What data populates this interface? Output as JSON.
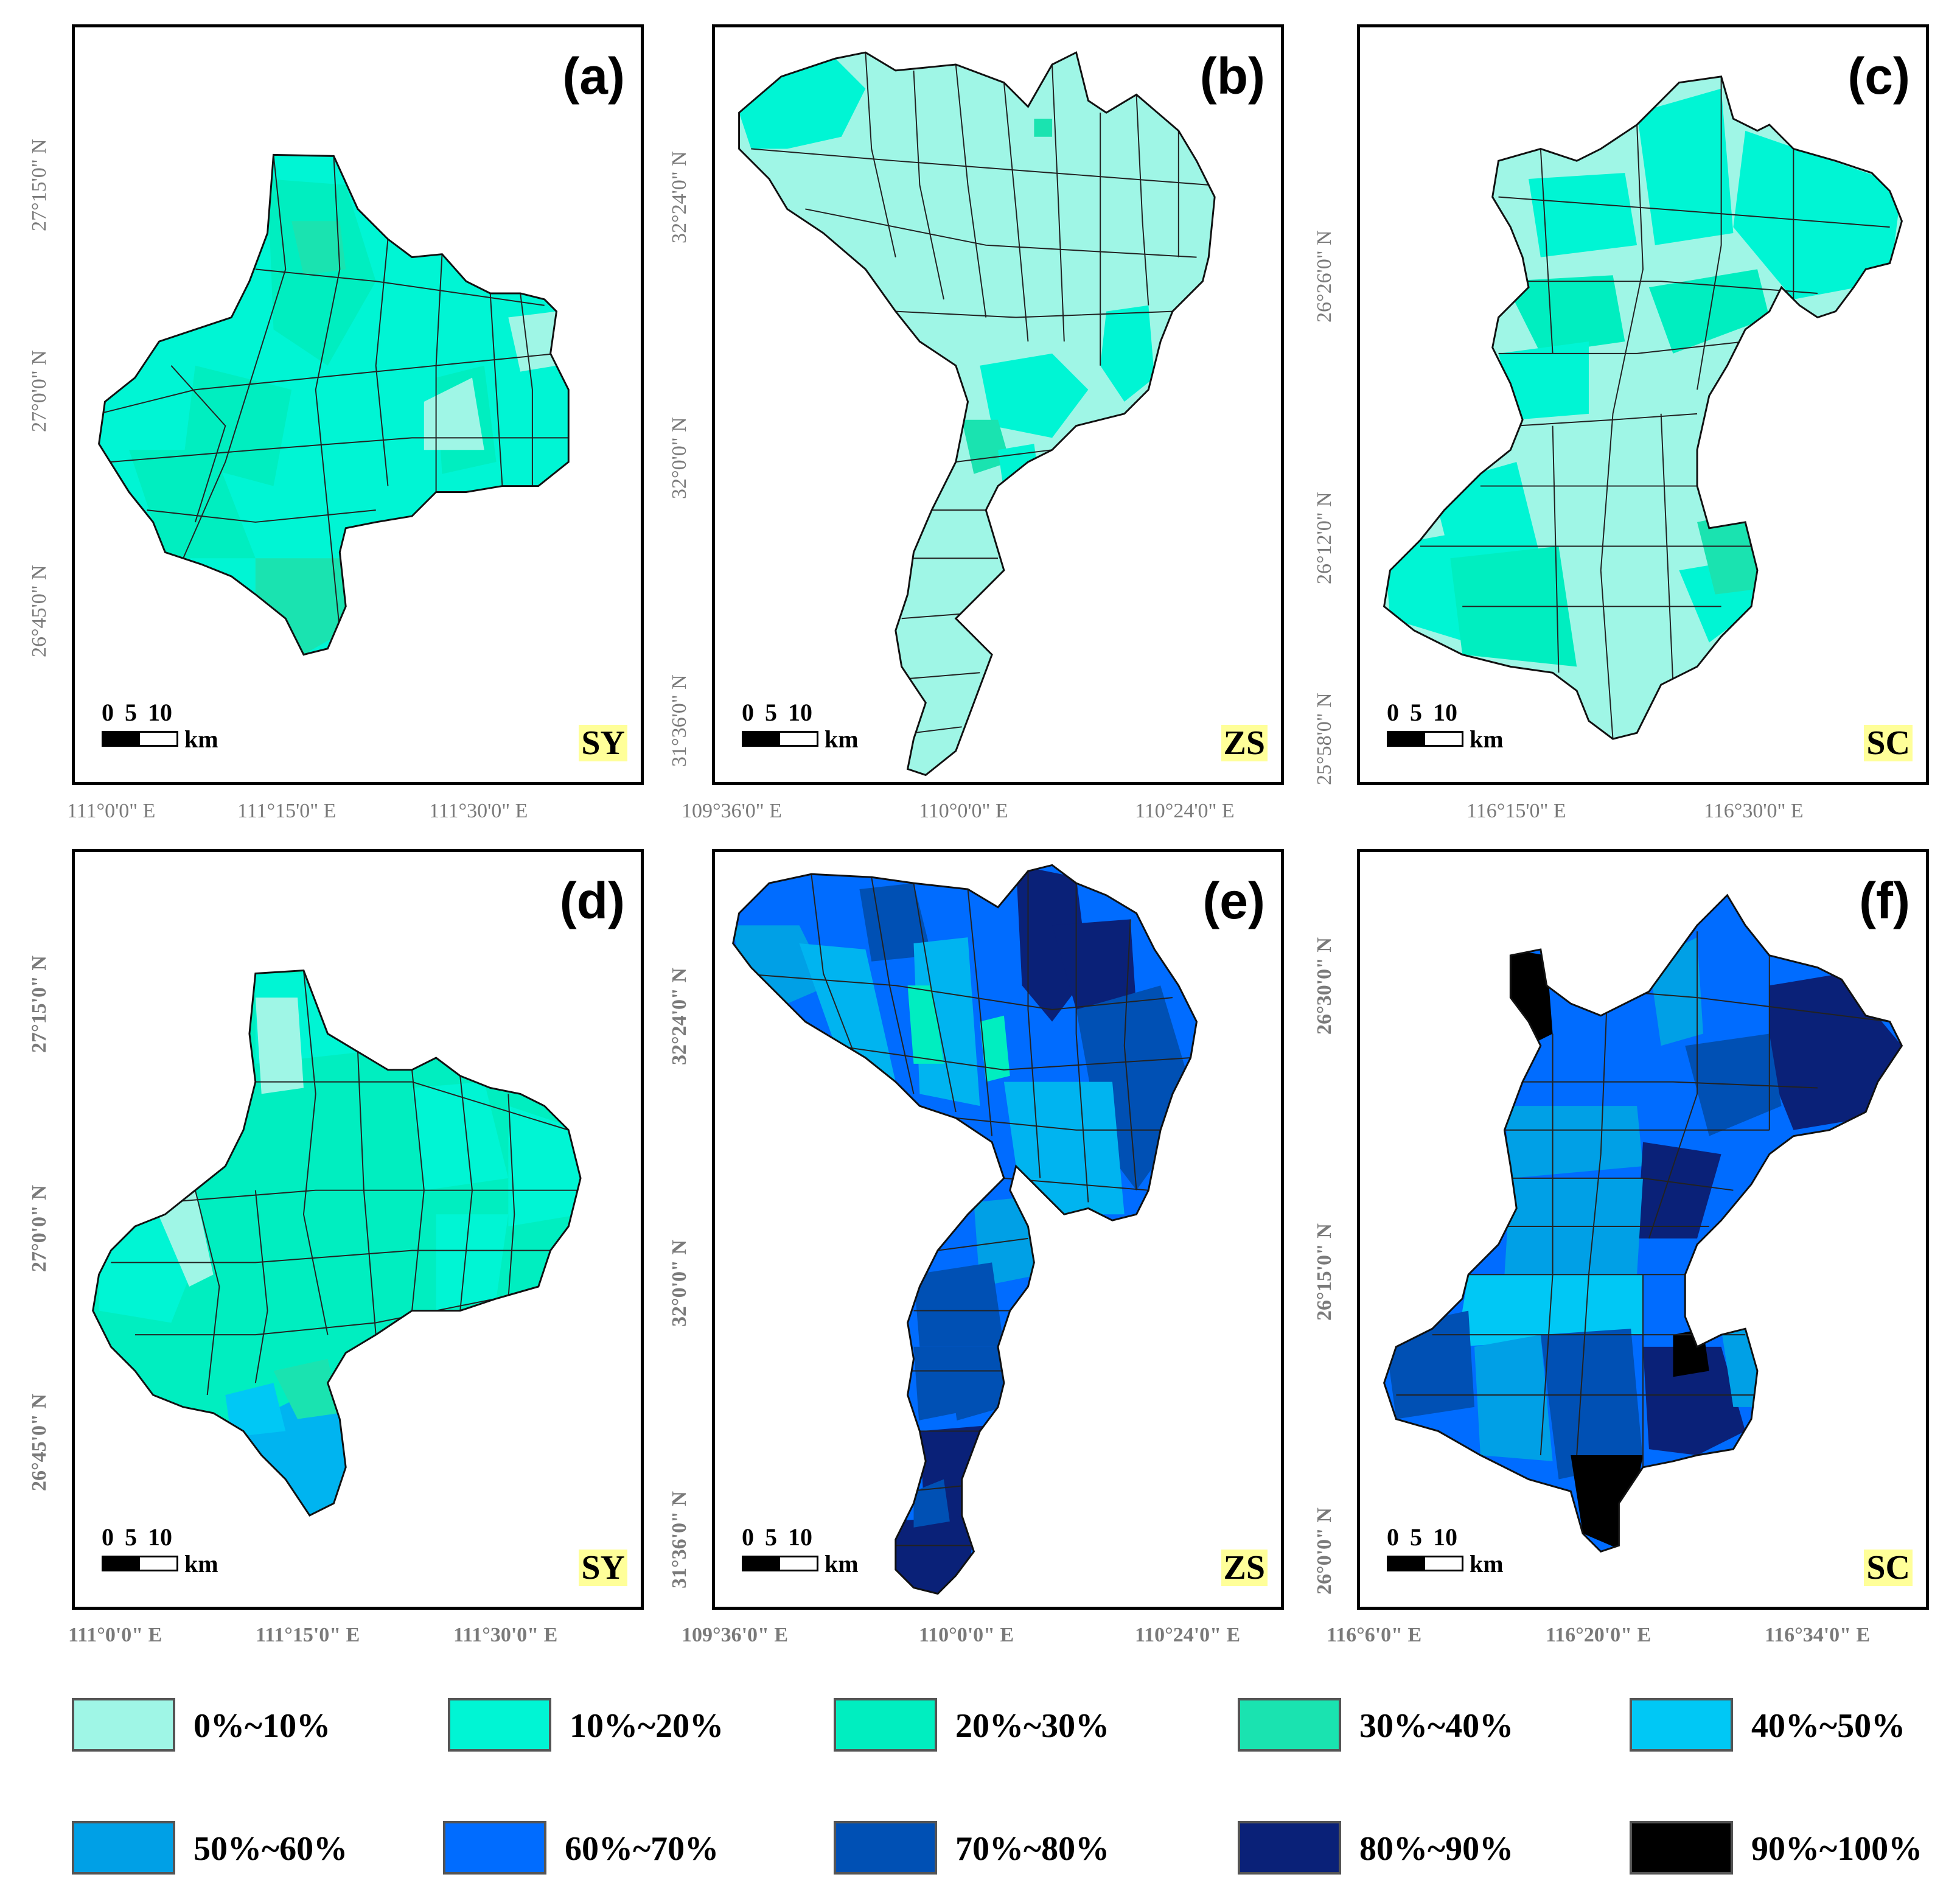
{
  "panels": [
    {
      "label": "(a)",
      "region": "SY",
      "colors": [
        "#00f5d4",
        "#00eec0",
        "#1ae3b0",
        "#9ff6e6"
      ]
    },
    {
      "label": "(b)",
      "region": "ZS",
      "colors": [
        "#9ff6e6",
        "#9ff6e6",
        "#00f5d4",
        "#1ae3b0"
      ]
    },
    {
      "label": "(c)",
      "region": "SC",
      "colors": [
        "#00f5d4",
        "#9ff6e6",
        "#1ae3b0",
        "#00eec0"
      ]
    },
    {
      "label": "(d)",
      "region": "SY",
      "colors": [
        "#00eec0",
        "#00f5d4",
        "#9ff6e6",
        "#00b4f0"
      ]
    },
    {
      "label": "(e)",
      "region": "ZS",
      "colors": [
        "#006cff",
        "#0050b4",
        "#00b4f0",
        "#0a2178"
      ]
    },
    {
      "label": "(f)",
      "region": "SC",
      "colors": [
        "#006cff",
        "#00a0e6",
        "#0050b4",
        "#0a2178"
      ]
    }
  ],
  "scalebar": {
    "n0": "0",
    "n5": "5",
    "n10": "10",
    "unit": "km"
  },
  "xticks": {
    "a": [
      "111°0'0\" E",
      "111°15'0\" E",
      "111°30'0\" E"
    ],
    "b": [
      "109°36'0\" E",
      "110°0'0\" E",
      "110°24'0\" E"
    ],
    "c": [
      "116°15'0\" E",
      "116°30'0\" E"
    ],
    "d": [
      "111°0'0\" E",
      "111°15'0\" E",
      "111°30'0\" E"
    ],
    "e": [
      "109°36'0\" E",
      "110°0'0\" E",
      "110°24'0\" E"
    ],
    "f": [
      "116°6'0\" E",
      "116°20'0\" E",
      "116°34'0\" E"
    ]
  },
  "yticks": {
    "a": [
      "27°15'0\" N",
      "27°0'0\" N",
      "26°45'0\" N"
    ],
    "b": [
      "32°24'0\" N",
      "32°0'0\" N",
      "31°36'0\" N"
    ],
    "c": [
      "26°26'0\" N",
      "26°12'0\" N",
      "25°58'0\" N"
    ],
    "d": [
      "27°15'0\" N",
      "27°0'0\" N",
      "26°45'0\" N"
    ],
    "e": [
      "32°24'0\" N",
      "32°0'0\" N",
      "31°36'0\" N"
    ],
    "f": [
      "26°30'0\" N",
      "26°15'0\" N",
      "26°0'0\" N"
    ]
  },
  "legend": [
    {
      "label": "0%~10%",
      "color": "#9ff6e6"
    },
    {
      "label": "10%~20%",
      "color": "#00f5d4"
    },
    {
      "label": "20%~30%",
      "color": "#00eec0"
    },
    {
      "label": "30%~40%",
      "color": "#1ae3b0"
    },
    {
      "label": "40%~50%",
      "color": "#00c8f5"
    },
    {
      "label": "50%~60%",
      "color": "#00a0e6"
    },
    {
      "label": "60%~70%",
      "color": "#006cff"
    },
    {
      "label": "70%~80%",
      "color": "#0050b4"
    },
    {
      "label": "80%~90%",
      "color": "#0a2178"
    },
    {
      "label": "90%~100%",
      "color": "#000000"
    }
  ]
}
